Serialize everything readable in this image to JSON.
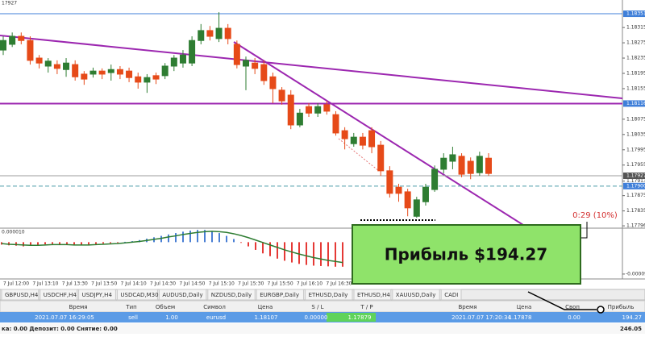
{
  "chart": {
    "corner_label": "17927",
    "price_lim": [
      1.17792,
      1.18387
    ],
    "price_ticks": [
      1.18315,
      1.18275,
      1.18235,
      1.18195,
      1.18155,
      1.18075,
      1.18035,
      1.17995,
      1.17955,
      1.17913,
      1.17875,
      1.17835,
      1.17796
    ],
    "price_markers": [
      1.18351,
      1.18116,
      1.17927,
      {
        "value": 1.179,
        "label": "1.17900"
      }
    ],
    "marker_colors": [
      "#3f7fd9",
      "#3f7fd9",
      "#555555",
      "#3f7fd9"
    ],
    "marker_line_colors": [
      "#3f7fd9",
      "#9c27b0",
      "#9e9e9e",
      "#4a9aa8"
    ],
    "bull_color": "#2e7d32",
    "bear_color": "#e64a19",
    "candles": {
      "open": [
        1.18256,
        1.18271,
        1.18292,
        1.18281,
        1.18235,
        1.18214,
        1.18218,
        1.18205,
        1.18218,
        1.18193,
        1.18193,
        1.18201,
        1.18197,
        1.18205,
        1.18201,
        1.18186,
        1.18172,
        1.18189,
        1.18189,
        1.18214,
        1.18222,
        1.18222,
        1.18281,
        1.18307,
        1.18286,
        1.18313,
        1.18271,
        1.18214,
        1.18222,
        1.18218,
        1.18186,
        1.18151,
        1.18138,
        1.1806,
        1.18108,
        1.18091,
        1.18113,
        1.18087,
        1.18045,
        1.18011,
        1.18028,
        1.18045,
        1.18007,
        1.1794,
        1.17897,
        1.17885,
        1.17821,
        1.17859,
        1.17891,
        1.17944,
        1.17965,
        1.17978,
        1.17965,
        1.17935,
        1.17973
      ],
      "high": [
        1.18292,
        1.18302,
        1.18302,
        1.18292,
        1.18243,
        1.18235,
        1.18229,
        1.18235,
        1.18229,
        1.18201,
        1.1821,
        1.18208,
        1.18218,
        1.18214,
        1.1821,
        1.18197,
        1.18193,
        1.18197,
        1.18222,
        1.18243,
        1.18256,
        1.18292,
        1.18324,
        1.18319,
        1.18355,
        1.18324,
        1.18281,
        1.18239,
        1.18235,
        1.18229,
        1.18197,
        1.18159,
        1.18151,
        1.18102,
        1.18117,
        1.18117,
        1.18123,
        1.18096,
        1.18054,
        1.18039,
        1.18039,
        1.18054,
        1.18018,
        1.17952,
        1.17906,
        1.17893,
        1.17872,
        1.17906,
        1.17954,
        1.17986,
        1.18003,
        1.17986,
        1.17975,
        1.1799,
        1.17986
      ],
      "low": [
        1.18243,
        1.18264,
        1.18271,
        1.18218,
        1.18208,
        1.18197,
        1.18193,
        1.18186,
        1.18176,
        1.18165,
        1.18184,
        1.1818,
        1.18176,
        1.1818,
        1.18172,
        1.18155,
        1.18144,
        1.18167,
        1.1818,
        1.18201,
        1.1821,
        1.18214,
        1.18271,
        1.18281,
        1.18277,
        1.18271,
        1.18208,
        1.18151,
        1.18193,
        1.18165,
        1.18117,
        1.18113,
        1.18049,
        1.18054,
        1.18081,
        1.18081,
        1.18087,
        1.18032,
        1.17996,
        1.18003,
        1.17996,
        1.17986,
        1.17927,
        1.1787,
        1.17859,
        1.17821,
        1.17817,
        1.17849,
        1.17885,
        1.17933,
        1.17944,
        1.17923,
        1.17918,
        1.17927,
        1.17927
      ],
      "close": [
        1.18281,
        1.18292,
        1.18281,
        1.18229,
        1.18222,
        1.18227,
        1.18208,
        1.18222,
        1.18186,
        1.1818,
        1.18201,
        1.18193,
        1.18205,
        1.18193,
        1.18184,
        1.18172,
        1.18184,
        1.1818,
        1.18214,
        1.18235,
        1.18243,
        1.18281,
        1.18307,
        1.18292,
        1.18313,
        1.18286,
        1.18218,
        1.18229,
        1.18208,
        1.18176,
        1.18155,
        1.18123,
        1.1806,
        1.18091,
        1.18091,
        1.18108,
        1.18096,
        1.18039,
        1.18024,
        1.18028,
        1.18007,
        1.18003,
        1.1794,
        1.17881,
        1.17881,
        1.17843,
        1.17864,
        1.17897,
        1.17944,
        1.17973,
        1.17982,
        1.17931,
        1.17933,
        1.17978,
        1.17933
      ]
    },
    "time_labels": [
      "7 Jul 12:00",
      "7 Jul 13:10",
      "7 Jul 13:30",
      "7 Jul 13:50",
      "7 Jul 14:10",
      "7 Jul 14:30",
      "7 Jul 14:50",
      "7 Jul 15:10",
      "7 Jul 15:30",
      "7 Jul 15:50",
      "7 Jul 16:10",
      "7 Jul 16:30"
    ],
    "indicator": {
      "label": "0.000010",
      "lim": [
        -0.000105,
        4e-05
      ],
      "ticks": [
        -9.1e-05
      ],
      "histogram": [
        -7e-06,
        -9e-06,
        -1e-05,
        -1.2e-05,
        -1e-05,
        -8e-06,
        -6e-06,
        -5e-06,
        -6e-06,
        -8e-06,
        -9e-06,
        -8e-06,
        -7e-06,
        -6e-06,
        -4e-06,
        -3e-06,
        -2e-06,
        1e-06,
        3e-06,
        6e-06,
        1e-05,
        1.4e-05,
        1.8e-05,
        2.2e-05,
        2.6e-05,
        3e-05,
        3.3e-05,
        3.5e-05,
        3.5e-05,
        3.2e-05,
        2.6e-05,
        1.8e-05,
        9e-06,
        -2e-06,
        -1.2e-05,
        -2.2e-05,
        -3.2e-05,
        -4e-05,
        -4.7e-05,
        -5.3e-05,
        -5.8e-05,
        -6.2e-05,
        -6.5e-05,
        -6.7e-05,
        -6.8e-05,
        -6.9e-05,
        -7e-05,
        -7e-05
      ],
      "signal": [
        -4e-06,
        -6e-06,
        -7e-06,
        -8e-06,
        -9e-06,
        -9e-06,
        -8e-06,
        -7e-06,
        -7e-06,
        -7e-06,
        -8e-06,
        -8e-06,
        -8e-06,
        -7e-06,
        -6e-06,
        -5e-06,
        -4e-06,
        -2e-06,
        0,
        2e-06,
        5e-06,
        8e-06,
        1.1e-05,
        1.5e-05,
        1.8e-05,
        2.2e-05,
        2.5e-05,
        2.8e-05,
        3e-05,
        3.1e-05,
        3e-05,
        2.8e-05,
        2.4e-05,
        1.9e-05,
        1.3e-05,
        6e-06,
        -1e-06,
        -8e-06,
        -1.5e-05,
        -2.2e-05,
        -2.8e-05,
        -3.4e-05,
        -3.9e-05,
        -4.4e-05,
        -4.8e-05,
        -5.2e-05,
        -5.5e-05,
        -5.8e-05
      ]
    }
  },
  "callout": {
    "text": "Прибыль $194.27",
    "timer": "0:29 (10%)"
  },
  "tabs": [
    "GBPUSD,H4",
    "USDCHF,H4",
    "USDJPY,H4",
    "USDCAD,M30",
    "AUDUSD,Daily",
    "NZDUSD,Daily",
    "EURGBP,Daily",
    "ETHUSD,Daily",
    "ETHUSD,H4",
    "XAUUSD,Daily",
    "CADI"
  ],
  "table": {
    "headers": [
      "Время",
      "Тип",
      "Объем",
      "Символ",
      "Цена",
      "S / L",
      "T / P",
      "Время",
      "Цена",
      "Своп",
      "Прибыль"
    ],
    "rows": [
      [
        "2021.07.07 16:29:05",
        "sell",
        "1.00",
        "eurusd",
        "1.18107",
        "0.00000",
        "1.17879",
        "2021.07.07 17:20:34",
        "1.17878",
        "0.00",
        "194.27"
      ]
    ],
    "footer": {
      "left": "ка: 0.00  Депозит: 0.00  Снятие: 0.00",
      "total": "246.05"
    }
  }
}
